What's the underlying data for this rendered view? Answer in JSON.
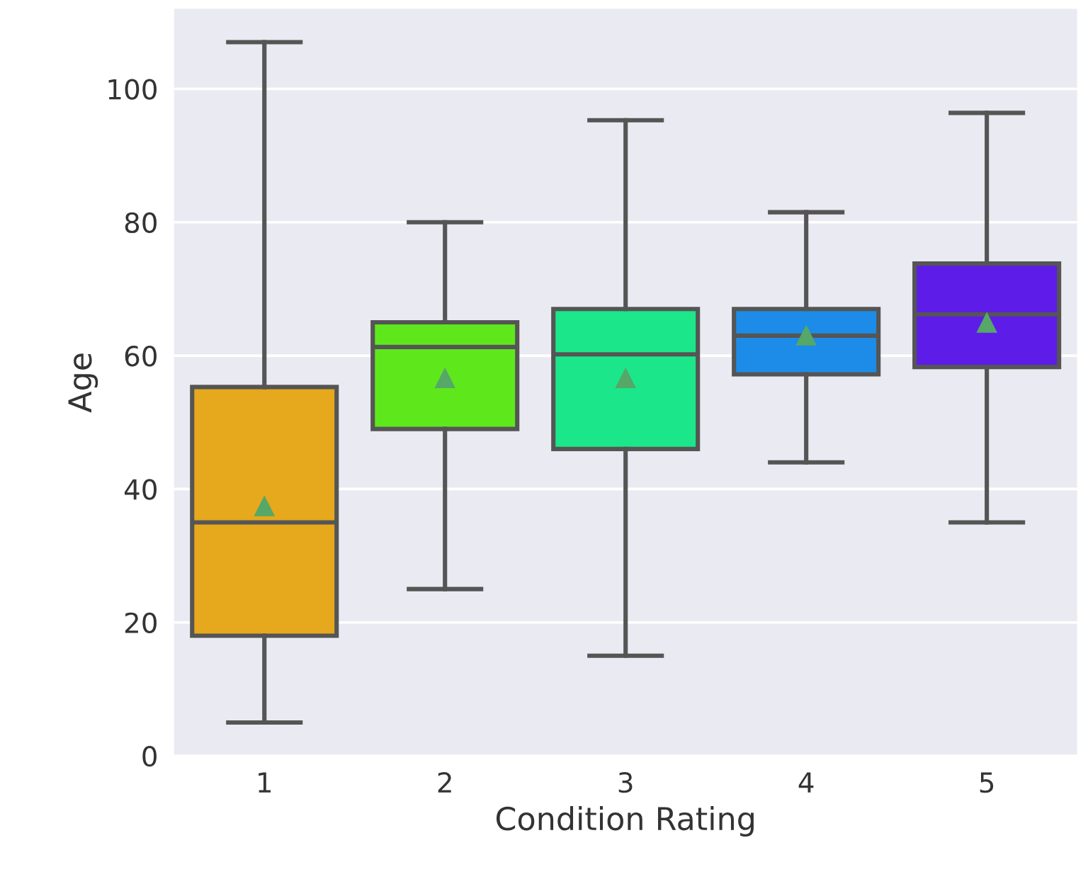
{
  "chart_data": {
    "type": "box",
    "xlabel": "Condition Rating",
    "ylabel": "Age",
    "categories": [
      "1",
      "2",
      "3",
      "4",
      "5"
    ],
    "colors": [
      "#e6a81c",
      "#5ee81c",
      "#1ce68a",
      "#1c8ce8",
      "#5e1ce8"
    ],
    "boxes": [
      {
        "low": 5,
        "q1": 18,
        "median": 35,
        "q3": 55.3,
        "high": 107,
        "mean": 37.4
      },
      {
        "low": 25,
        "q1": 49,
        "median": 61.3,
        "q3": 65,
        "high": 80,
        "mean": 56.6
      },
      {
        "low": 15,
        "q1": 46,
        "median": 60.2,
        "q3": 67,
        "high": 95.3,
        "mean": 56.6
      },
      {
        "low": 44,
        "q1": 57.2,
        "median": 63,
        "q3": 67,
        "high": 81.5,
        "mean": 63
      },
      {
        "low": 35,
        "q1": 58.3,
        "median": 66.2,
        "q3": 73.8,
        "high": 96.4,
        "mean": 64.9
      }
    ],
    "ylim": [
      0,
      112
    ],
    "yticks": [
      0,
      20,
      40,
      60,
      80,
      100
    ],
    "grid": "y",
    "marker": "triangle"
  }
}
